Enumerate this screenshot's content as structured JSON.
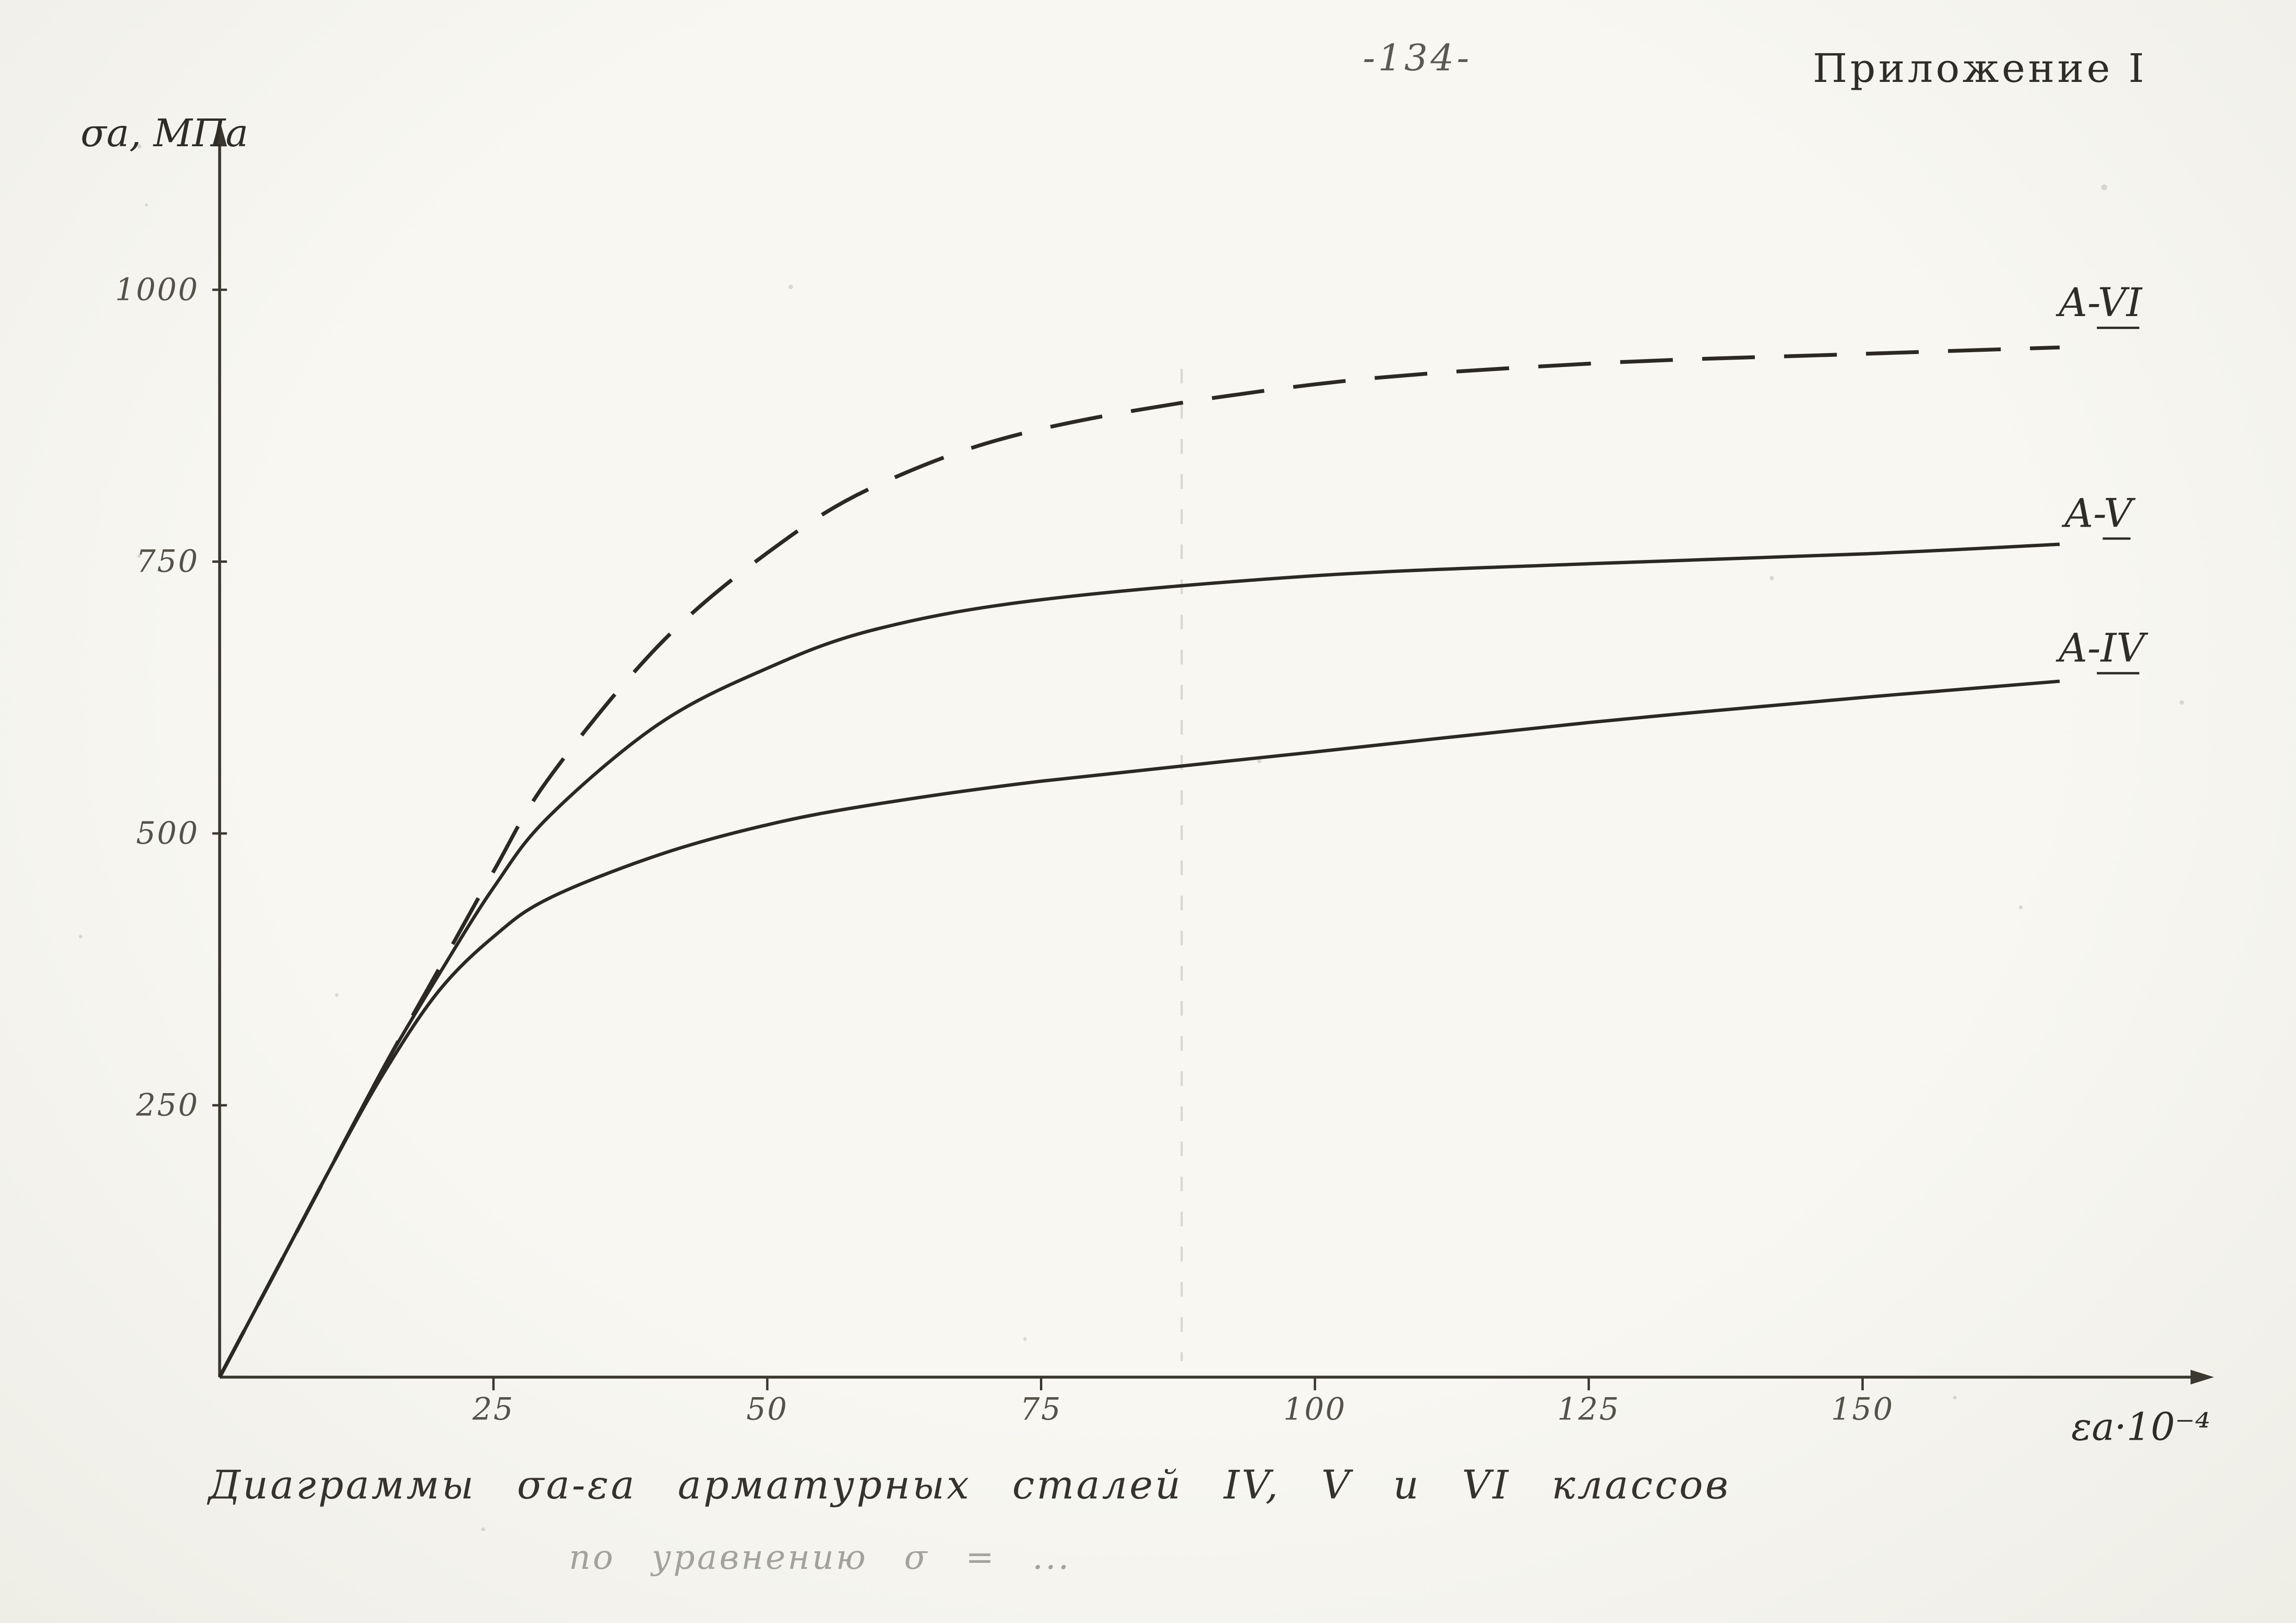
{
  "page": {
    "page_number": "-134-",
    "appendix_label": "Приложение I",
    "caption_line1": "Диаграммы σa-εa арматурных сталей IV, V и VI классов",
    "caption_line2": "по уравнению σ = ..."
  },
  "chart_data": {
    "type": "line",
    "title": "Диаграммы σa-εa арматурных сталей IV, V и VI классов",
    "xlabel": "εa·10⁻⁴",
    "ylabel": "σa, МПа",
    "xlim": [
      0,
      170
    ],
    "ylim": [
      0,
      1100
    ],
    "x_ticks": [
      25,
      50,
      75,
      100,
      125,
      150
    ],
    "y_ticks": [
      250,
      500,
      750,
      1000
    ],
    "grid": false,
    "legend_position": "labels-at-curve-ends",
    "x": [
      0,
      5,
      10,
      15,
      20,
      25,
      30,
      40,
      50,
      60,
      75,
      100,
      125,
      150,
      168
    ],
    "series": [
      {
        "name": "A-VI",
        "style": "dashed",
        "values": [
          0,
          95,
          190,
          285,
          375,
          465,
          550,
          672,
          758,
          820,
          872,
          913,
          932,
          941,
          947
        ]
      },
      {
        "name": "A-V",
        "style": "solid",
        "values": [
          0,
          95,
          190,
          285,
          370,
          450,
          515,
          600,
          652,
          688,
          715,
          737,
          748,
          757,
          766
        ]
      },
      {
        "name": "A-IV",
        "style": "solid",
        "values": [
          0,
          95,
          190,
          280,
          355,
          405,
          440,
          480,
          508,
          527,
          548,
          575,
          602,
          625,
          640
        ]
      }
    ]
  }
}
